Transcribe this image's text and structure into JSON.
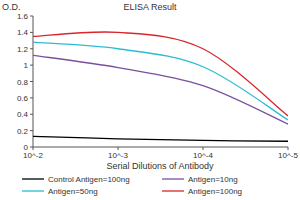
{
  "chart_data": {
    "type": "line",
    "title": "ELISA Result",
    "y_label": "O.D.",
    "x_label": "Serial Dilutions of Antibody",
    "log": "x",
    "grid": false,
    "legend": "bottom",
    "x": [
      0.01,
      0.001,
      0.0001,
      1e-05
    ],
    "xlim": [
      0.01,
      1e-05
    ],
    "xticks": [
      {
        "value": 0.01,
        "label": "10^-2"
      },
      {
        "value": 0.001,
        "label": "10^-3"
      },
      {
        "value": 0.0001,
        "label": "10^-4"
      },
      {
        "value": 1e-05,
        "label": "10^-5"
      }
    ],
    "ylim": [
      0,
      1.6
    ],
    "yticks": [
      0,
      0.2,
      0.4,
      0.6,
      0.8,
      1,
      1.2,
      1.4,
      1.6
    ],
    "series": [
      {
        "name": "Control Antigen=100ng",
        "color": "#000000",
        "values": [
          0.13,
          0.1,
          0.08,
          0.07
        ]
      },
      {
        "name": "Antigen=10ng",
        "color": "#7b4f9e",
        "values": [
          1.12,
          0.97,
          0.75,
          0.28
        ]
      },
      {
        "name": "Antigen=50ng",
        "color": "#2bbcd4",
        "values": [
          1.28,
          1.2,
          0.98,
          0.33
        ]
      },
      {
        "name": "Antigen=100ng",
        "color": "#d9262b",
        "values": [
          1.35,
          1.4,
          1.2,
          0.38
        ]
      }
    ]
  }
}
